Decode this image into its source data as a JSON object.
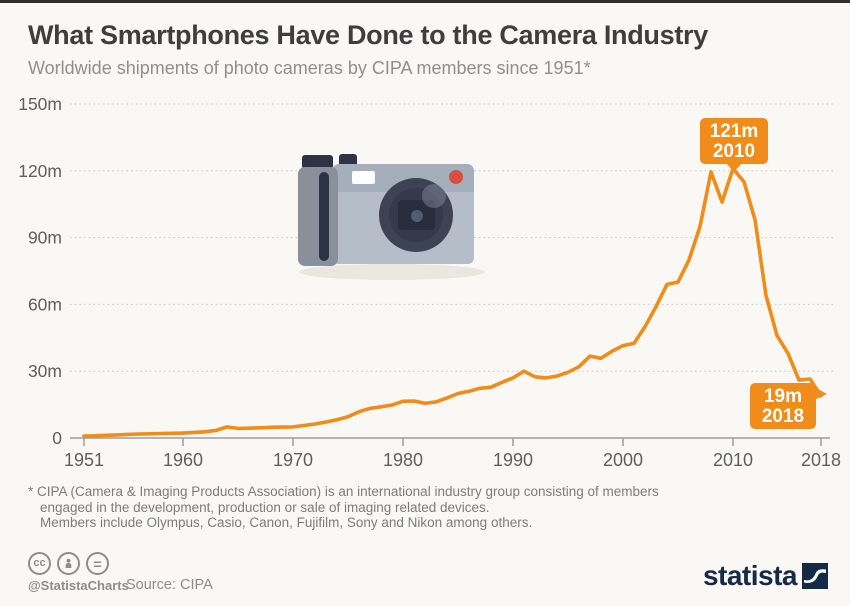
{
  "page": {
    "title": "What Smartphones Have Done to the Camera Industry",
    "subtitle": "Worldwide shipments of photo cameras by CIPA members since 1951*"
  },
  "chart_data": {
    "type": "line",
    "title": "What Smartphones Have Done to the Camera Industry",
    "series_name": "Worldwide camera shipments by CIPA members (millions of units)",
    "unit": "m",
    "x": [
      1951,
      1952,
      1953,
      1954,
      1955,
      1956,
      1957,
      1958,
      1959,
      1960,
      1961,
      1962,
      1963,
      1964,
      1965,
      1966,
      1967,
      1968,
      1969,
      1970,
      1971,
      1972,
      1973,
      1974,
      1975,
      1976,
      1977,
      1978,
      1979,
      1980,
      1981,
      1982,
      1983,
      1984,
      1985,
      1986,
      1987,
      1988,
      1989,
      1990,
      1991,
      1992,
      1993,
      1994,
      1995,
      1996,
      1997,
      1998,
      1999,
      2000,
      2001,
      2002,
      2003,
      2004,
      2005,
      2006,
      2007,
      2008,
      2009,
      2010,
      2011,
      2012,
      2013,
      2014,
      2015,
      2016,
      2017,
      2018
    ],
    "values": [
      0.9,
      1.0,
      1.2,
      1.4,
      1.6,
      1.8,
      1.9,
      2.0,
      2.1,
      2.2,
      2.5,
      2.8,
      3.4,
      5.0,
      4.3,
      4.4,
      4.6,
      4.8,
      4.9,
      5.0,
      5.6,
      6.3,
      7.2,
      8.2,
      9.5,
      11.8,
      13.3,
      14.0,
      14.8,
      16.5,
      16.6,
      15.6,
      16.2,
      18.0,
      20.0,
      21.0,
      22.3,
      22.8,
      25.0,
      27.0,
      30.0,
      27.5,
      27.0,
      27.8,
      29.5,
      32.0,
      36.8,
      35.8,
      39.0,
      41.5,
      42.5,
      50.0,
      59.0,
      69.0,
      70.0,
      80.0,
      95.0,
      119.5,
      106.0,
      121.0,
      115.0,
      98.0,
      64.0,
      46.0,
      38.0,
      26.0,
      26.5,
      19.0
    ],
    "ylim": [
      0,
      150
    ],
    "y_ticks": [
      0,
      30,
      60,
      90,
      120,
      150
    ],
    "y_tick_labels": [
      "0",
      "30m",
      "60m",
      "90m",
      "120m",
      "150m"
    ],
    "x_ticks": [
      1951,
      1960,
      1970,
      1980,
      1990,
      2000,
      2010,
      2018
    ],
    "grid": "horizontal-dotted",
    "legend": "none",
    "line_color": "#EF8C1A",
    "annotations": [
      {
        "value": 121,
        "year": 2010,
        "value_label": "121m",
        "year_label": "2010"
      },
      {
        "value": 19,
        "year": 2018,
        "value_label": "19m",
        "year_label": "2018"
      }
    ]
  },
  "footnote": {
    "line1": "* CIPA (Camera & Imaging Products Association) is an international industry group consisting of members",
    "line2": "engaged in the development, production or sale of imaging related devices.",
    "line3": "Members include Olympus, Casio, Canon, Fujifilm, Sony and Nikon among others."
  },
  "footer": {
    "handle": "@StatistaCharts",
    "source": "Source: CIPA",
    "logo_text": "statista",
    "license_icons": [
      "cc-icon",
      "attribution-person-icon",
      "no-derivatives-equals-icon"
    ]
  },
  "colors": {
    "accent_orange": "#EF8C1A",
    "background": "#f9f8f5",
    "title_text": "#3e3e3e",
    "subtitle_text": "#8f8f8f",
    "axis_text": "#5f5f5f",
    "logo_navy": "#152a45"
  }
}
